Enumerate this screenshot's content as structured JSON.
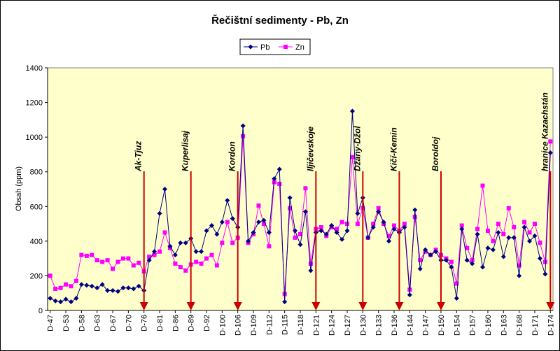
{
  "chart_data": {
    "type": "line",
    "title": "Řečištní sedimenty - Pb, Zn",
    "ylabel": "Obsah (ppm)",
    "categories": [
      "D-47",
      null,
      null,
      "D-53",
      null,
      null,
      "D-58",
      null,
      null,
      "D-63",
      null,
      null,
      "D-67",
      null,
      null,
      "D-70",
      null,
      null,
      "D-76",
      null,
      null,
      "D-81",
      null,
      null,
      "D-86",
      null,
      null,
      "D-89",
      null,
      null,
      "D-92",
      null,
      null,
      "D-100",
      null,
      null,
      "D-106",
      null,
      null,
      "D-109",
      null,
      null,
      "D-112",
      null,
      null,
      "D-115",
      null,
      null,
      "D-118",
      null,
      null,
      "D-121",
      null,
      null,
      "D-124",
      null,
      null,
      "D-127",
      null,
      null,
      "D-130",
      null,
      null,
      "D-133",
      null,
      null,
      "D-136",
      null,
      null,
      "D-144",
      null,
      null,
      "D-147",
      null,
      null,
      "D-150",
      null,
      null,
      "D-154",
      null,
      null,
      "D-157",
      null,
      null,
      "D-160",
      null,
      null,
      "D-163",
      null,
      null,
      "D-168",
      null,
      null,
      "D-171",
      null,
      null,
      "D-174"
    ],
    "series": [
      {
        "name": "Pb",
        "color": "#000080",
        "marker": "diamond",
        "values": [
          70,
          55,
          50,
          65,
          50,
          70,
          150,
          145,
          140,
          130,
          150,
          115,
          115,
          110,
          130,
          130,
          125,
          140,
          115,
          290,
          340,
          560,
          700,
          370,
          320,
          390,
          390,
          415,
          340,
          340,
          460,
          490,
          440,
          510,
          635,
          530,
          480,
          1065,
          400,
          450,
          510,
          520,
          450,
          760,
          815,
          50,
          650,
          460,
          380,
          570,
          230,
          450,
          460,
          440,
          490,
          450,
          410,
          460,
          1150,
          560,
          650,
          420,
          480,
          570,
          510,
          400,
          470,
          450,
          480,
          90,
          580,
          240,
          350,
          320,
          340,
          290,
          290,
          250,
          70,
          470,
          290,
          270,
          440,
          250,
          360,
          350,
          450,
          310,
          420,
          420,
          200,
          480,
          400,
          430,
          300,
          210,
          910
        ]
      },
      {
        "name": "Zn",
        "color": "#FF00FF",
        "marker": "square",
        "values": [
          200,
          125,
          130,
          150,
          140,
          170,
          320,
          315,
          320,
          290,
          280,
          290,
          240,
          280,
          300,
          300,
          260,
          275,
          225,
          310,
          320,
          340,
          450,
          360,
          270,
          250,
          230,
          265,
          280,
          270,
          300,
          320,
          260,
          390,
          510,
          390,
          420,
          1005,
          390,
          440,
          605,
          500,
          370,
          740,
          730,
          95,
          590,
          420,
          440,
          705,
          270,
          470,
          480,
          430,
          480,
          470,
          510,
          500,
          885,
          500,
          590,
          420,
          500,
          590,
          500,
          430,
          490,
          460,
          500,
          120,
          540,
          290,
          340,
          320,
          350,
          320,
          300,
          280,
          155,
          490,
          360,
          290,
          470,
          720,
          460,
          400,
          500,
          440,
          590,
          480,
          260,
          510,
          450,
          500,
          390,
          280,
          975
        ]
      }
    ],
    "annotations": [
      "Ak-Tjuz",
      "Kuperlisaj",
      "Kordon",
      "Iljičevskoje",
      "Džany-Džol",
      "Kičí-Kemin",
      "Boroldoj",
      "hranice Kazachstán"
    ],
    "annotation_color": "#CC0000",
    "ylim": [
      0,
      1400
    ],
    "yticks": [
      0,
      200,
      400,
      600,
      800,
      1000,
      1200,
      1400
    ],
    "grid": false,
    "legend": "top",
    "plot_background": "#FFFFCC"
  }
}
